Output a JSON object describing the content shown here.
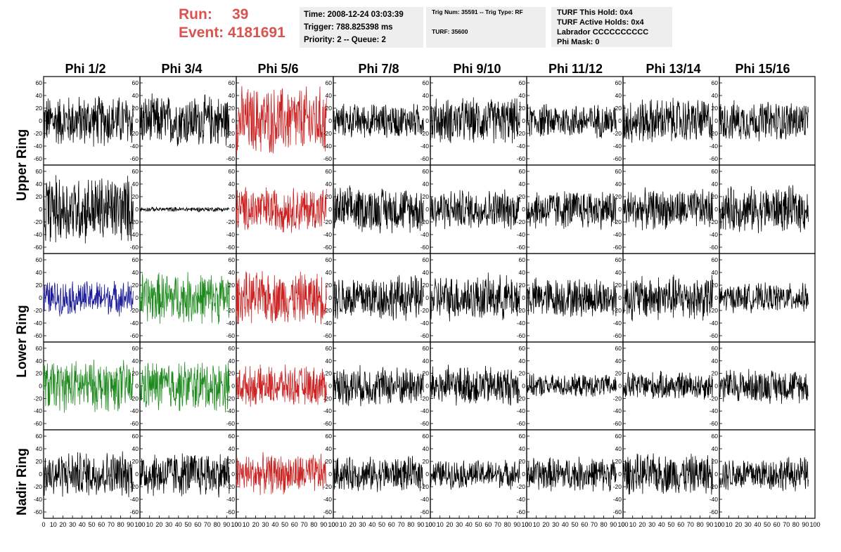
{
  "header": {
    "run_label": "Run:",
    "run_value": "39",
    "event_label": "Event:",
    "event_value": "4181691"
  },
  "info_box_1": {
    "time": "Time: 2008-12-24 03:03:39",
    "trigger": "Trigger: 788.825398 ms",
    "priority": "Priority: 2 -- Queue: 2"
  },
  "info_box_2": {
    "trig": "Trig Num: 35591 -- Trig Type: RF",
    "turf": "TURF: 35600"
  },
  "info_box_3": {
    "hold": "TURF This Hold: 0x4",
    "active": "TURF Active Holds: 0x4",
    "labrador": "Labrador CCCCCCCCCC",
    "mask": "Phi Mask: 0"
  },
  "columns": [
    "Phi 1/2",
    "Phi 3/4",
    "Phi 5/6",
    "Phi 7/8",
    "Phi 9/10",
    "Phi 11/12",
    "Phi 13/14",
    "Phi 15/16"
  ],
  "ring_labels": [
    "Upper Ring",
    "Lower Ring",
    "Nadir Ring"
  ],
  "axes": {
    "y_ticks": [
      "60",
      "40",
      "20",
      "0",
      "-20",
      "-40",
      "-60"
    ],
    "x_ticks": [
      "0",
      "10",
      "20",
      "30",
      "40",
      "50",
      "60",
      "70",
      "80",
      "90",
      "100"
    ],
    "ylim": [
      -70,
      70
    ],
    "xlim": [
      0,
      100
    ]
  },
  "trace_colors": {
    "default": "#000000",
    "red": "#cc2222",
    "blue": "#1a1a9a",
    "green": "#1e8a1e"
  },
  "traces": [
    [
      "black",
      "black",
      "red",
      "black",
      "black",
      "black",
      "black",
      "black"
    ],
    [
      "black",
      "black",
      "red",
      "black",
      "black",
      "black",
      "black",
      "black"
    ],
    [
      "blue",
      "green",
      "red",
      "black",
      "black",
      "black",
      "black",
      "black"
    ],
    [
      "green",
      "green",
      "red",
      "black",
      "black",
      "black",
      "black",
      "black"
    ],
    [
      "black",
      "black",
      "red",
      "black",
      "black",
      "black",
      "black",
      "black"
    ]
  ],
  "trace_amplitude": [
    [
      45,
      45,
      60,
      30,
      40,
      30,
      40,
      35
    ],
    [
      60,
      4,
      40,
      40,
      35,
      35,
      35,
      40
    ],
    [
      30,
      45,
      45,
      40,
      40,
      35,
      40,
      25
    ],
    [
      45,
      45,
      35,
      35,
      35,
      20,
      25,
      30
    ],
    [
      40,
      40,
      35,
      30,
      25,
      30,
      35,
      30
    ]
  ]
}
